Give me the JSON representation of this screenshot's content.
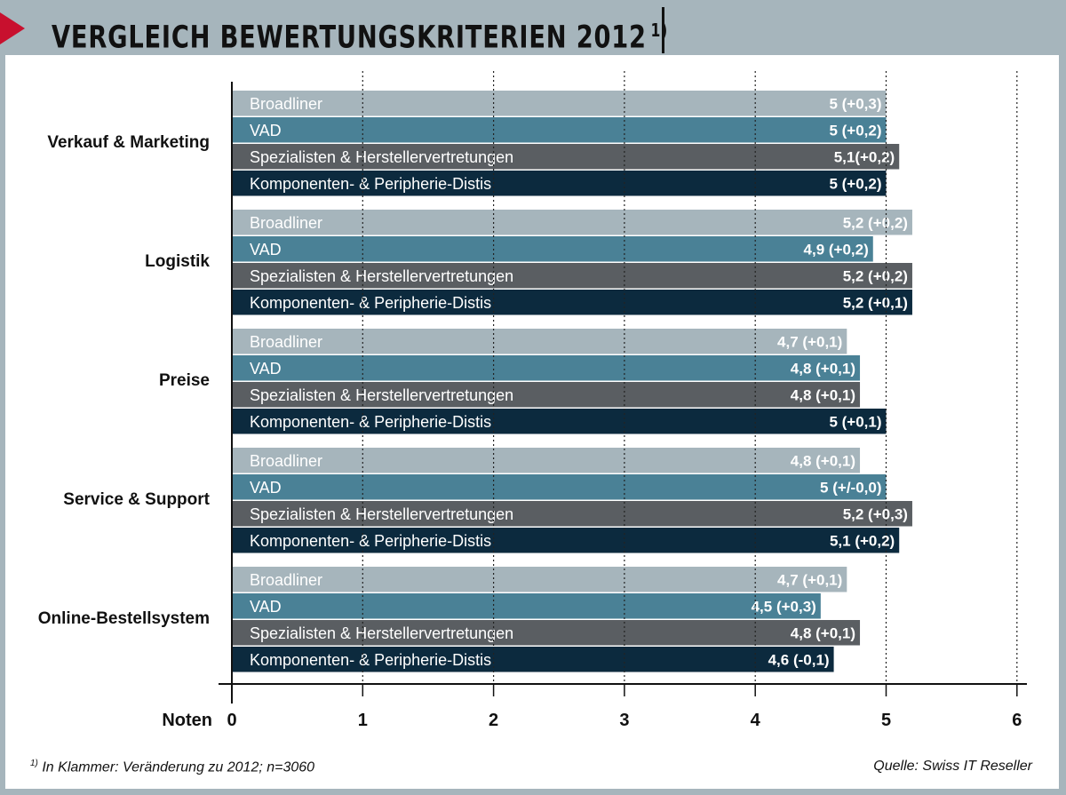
{
  "header": {
    "title": "VERGLEICH BEWERTUNGSKRITERIEN 2012",
    "title_note": "1)"
  },
  "footer": {
    "footnote_mark": "1)",
    "footnote": "In Klammer: Veränderung zu 2012; n=3060",
    "source": "Quelle: Swiss IT Reseller"
  },
  "chart_data": {
    "type": "bar",
    "orientation": "horizontal",
    "xlabel": "Noten",
    "xlim": [
      0,
      6
    ],
    "xticks": [
      "0",
      "1",
      "2",
      "3",
      "4",
      "5",
      "6"
    ],
    "grid": "vertical dotted",
    "colors": {
      "Broadliner": "#a6b5bc",
      "VAD": "#4a8196",
      "Spezialisten & Herstellervertretungen": "#5a5e62",
      "Komponenten- & Peripherie-Distis": "#0c2a3e"
    },
    "groups": [
      {
        "category": "Verkauf & Marketing",
        "bars": [
          {
            "series": "Broadliner",
            "value": 5.0,
            "label": "5 (+0,3)"
          },
          {
            "series": "VAD",
            "value": 5.0,
            "label": "5 (+0,2)"
          },
          {
            "series": "Spezialisten & Herstellervertretungen",
            "value": 5.1,
            "label": "5,1(+0,2)"
          },
          {
            "series": "Komponenten- & Peripherie-Distis",
            "value": 5.0,
            "label": "5 (+0,2)"
          }
        ]
      },
      {
        "category": "Logistik",
        "bars": [
          {
            "series": "Broadliner",
            "value": 5.2,
            "label": "5,2 (+0,2)"
          },
          {
            "series": "VAD",
            "value": 4.9,
            "label": "4,9 (+0,2)"
          },
          {
            "series": "Spezialisten & Herstellervertretungen",
            "value": 5.2,
            "label": "5,2 (+0,2)"
          },
          {
            "series": "Komponenten- & Peripherie-Distis",
            "value": 5.2,
            "label": "5,2 (+0,1)"
          }
        ]
      },
      {
        "category": "Preise",
        "bars": [
          {
            "series": "Broadliner",
            "value": 4.7,
            "label": "4,7 (+0,1)"
          },
          {
            "series": "VAD",
            "value": 4.8,
            "label": "4,8 (+0,1)"
          },
          {
            "series": "Spezialisten & Herstellervertretungen",
            "value": 4.8,
            "label": "4,8 (+0,1)"
          },
          {
            "series": "Komponenten- & Peripherie-Distis",
            "value": 5.0,
            "label": "5 (+0,1)"
          }
        ]
      },
      {
        "category": "Service & Support",
        "bars": [
          {
            "series": "Broadliner",
            "value": 4.8,
            "label": "4,8 (+0,1)"
          },
          {
            "series": "VAD",
            "value": 5.0,
            "label": "5 (+/-0,0)"
          },
          {
            "series": "Spezialisten & Herstellervertretungen",
            "value": 5.2,
            "label": "5,2 (+0,3)"
          },
          {
            "series": "Komponenten- & Peripherie-Distis",
            "value": 5.1,
            "label": "5,1 (+0,2)"
          }
        ]
      },
      {
        "category": "Online-Bestellsystem",
        "bars": [
          {
            "series": "Broadliner",
            "value": 4.7,
            "label": "4,7 (+0,1)"
          },
          {
            "series": "VAD",
            "value": 4.5,
            "label": "4,5 (+0,3)"
          },
          {
            "series": "Spezialisten & Herstellervertretungen",
            "value": 4.8,
            "label": "4,8 (+0,1)"
          },
          {
            "series": "Komponenten- & Peripherie-Distis",
            "value": 4.6,
            "label": "4,6 (-0,1)"
          }
        ]
      }
    ]
  }
}
